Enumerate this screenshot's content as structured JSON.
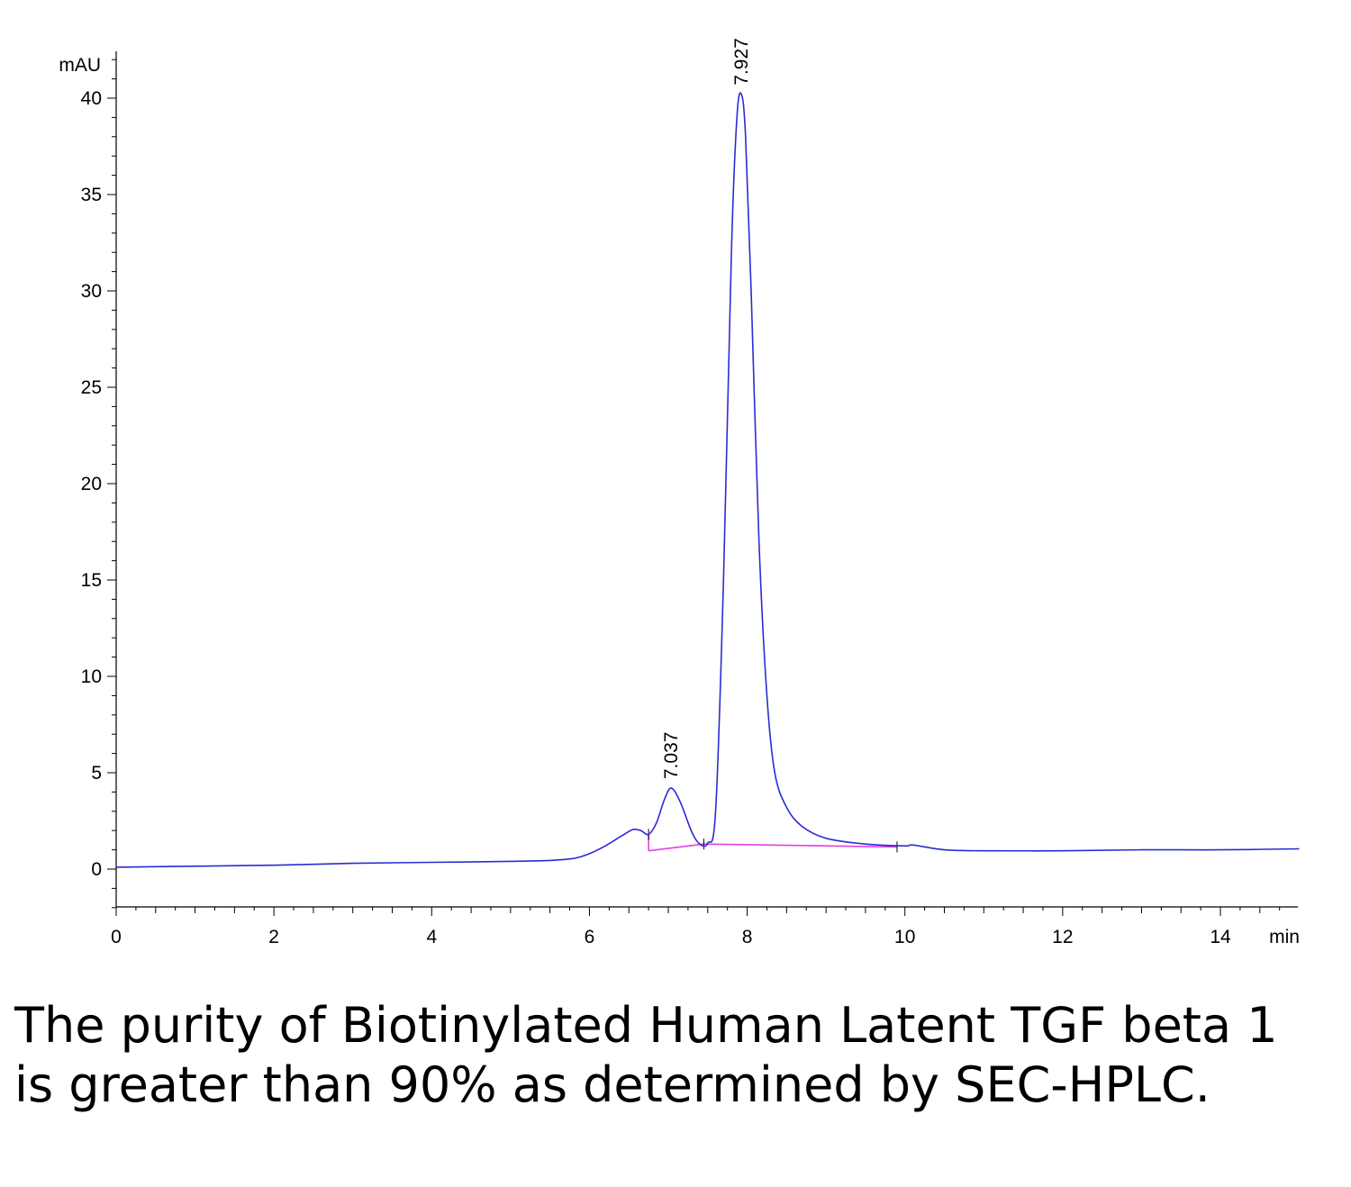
{
  "caption": "The purity of Biotinylated Human Latent TGF beta 1 is greater than 90% as determined by SEC-HPLC.",
  "chart_data": {
    "type": "line",
    "title": "",
    "xlabel": "min",
    "ylabel": "mAU",
    "xlim": [
      0,
      15
    ],
    "ylim": [
      -2,
      42
    ],
    "x_ticks": [
      0,
      2,
      4,
      6,
      8,
      10,
      12,
      14
    ],
    "x_tick_labels": [
      "0",
      "2",
      "4",
      "6",
      "8",
      "10",
      "12",
      "14"
    ],
    "y_ticks": [
      0,
      5,
      10,
      15,
      20,
      25,
      30,
      35,
      40
    ],
    "y_tick_labels": [
      "0",
      "5",
      "10",
      "15",
      "20",
      "25",
      "30",
      "35",
      "40"
    ],
    "grid": false,
    "colors": {
      "signal": "#2b2bd6",
      "baseline": "#e040e0",
      "axis": "#000000"
    },
    "series": [
      {
        "x": [
          0,
          1,
          2,
          3,
          4,
          5,
          5.5,
          5.8,
          6.0,
          6.2,
          6.4,
          6.55,
          6.65,
          6.75,
          6.85,
          6.95,
          7.037,
          7.15,
          7.3,
          7.4,
          7.5,
          7.6,
          7.7,
          7.8,
          7.87,
          7.927,
          7.98,
          8.05,
          8.15,
          8.25,
          8.35,
          8.5,
          8.7,
          9.0,
          9.5,
          10.0,
          10.1,
          10.5,
          11,
          12,
          13,
          14,
          15
        ],
        "y": [
          0.1,
          0.15,
          0.2,
          0.3,
          0.35,
          0.4,
          0.45,
          0.55,
          0.8,
          1.2,
          1.7,
          2.05,
          2.0,
          1.8,
          2.4,
          3.6,
          4.2,
          3.5,
          1.9,
          1.3,
          1.35,
          3.0,
          15.0,
          32.0,
          39.0,
          40.2,
          38.0,
          30.0,
          17.0,
          9.0,
          5.0,
          3.2,
          2.2,
          1.6,
          1.3,
          1.2,
          1.25,
          1.0,
          0.95,
          0.95,
          1.0,
          1.0,
          1.05
        ]
      }
    ],
    "baselines": [
      {
        "x": [
          6.75,
          7.45
        ],
        "y": [
          0.95,
          1.3
        ]
      },
      {
        "x": [
          7.45,
          9.9
        ],
        "y": [
          1.3,
          1.15
        ]
      }
    ],
    "annotations": [
      {
        "text": "7.037",
        "x": 7.037,
        "y": 4.2
      },
      {
        "text": "7.927",
        "x": 7.927,
        "y": 40.2
      }
    ]
  }
}
